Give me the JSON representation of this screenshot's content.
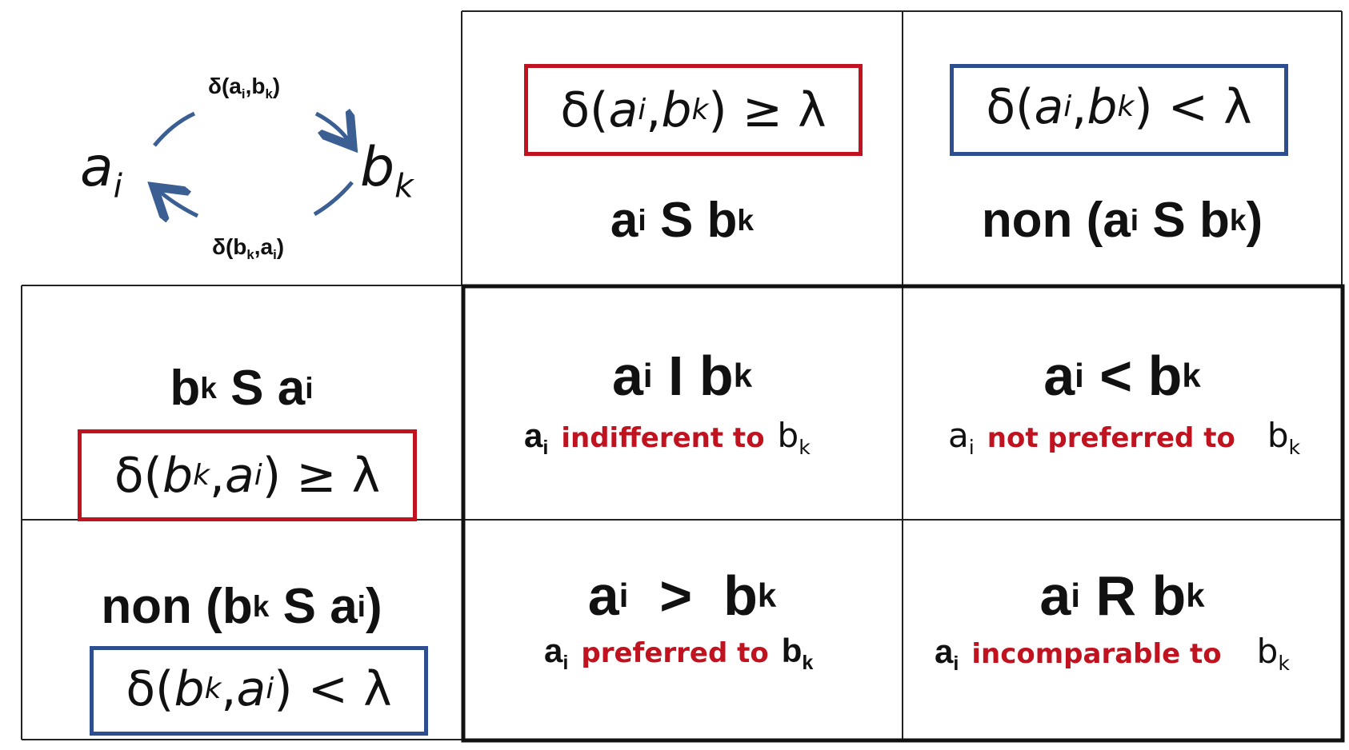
{
  "graph": {
    "node_a": "a",
    "node_a_sub": "i",
    "node_b": "b",
    "node_b_sub": "k",
    "top_arrow": {
      "pre": "δ(a",
      "s1": "i",
      "mid": ",b",
      "s2": "k",
      "post": ")"
    },
    "bottom_arrow": {
      "pre": "δ(b",
      "s1": "k",
      "mid": ",a",
      "s2": "i",
      "post": ")"
    }
  },
  "col_headers": [
    {
      "cond": {
        "pre": "δ(",
        "v1": "a",
        "s1": "i",
        "sep": ", ",
        "v2": "b",
        "s2": "k",
        "post": ")",
        "op": "≥ λ"
      },
      "rel": {
        "t1": "a",
        "s1": "i",
        "op": " S ",
        "t2": "b",
        "s2": "k",
        "prefix": "",
        "suffix": ""
      }
    },
    {
      "cond": {
        "pre": "δ(",
        "v1": "a",
        "s1": "i",
        "sep": ", ",
        "v2": "b",
        "s2": "k",
        "post": ")",
        "op": "< λ"
      },
      "rel": {
        "prefix": "non (",
        "t1": "a",
        "s1": "i",
        "op": " S ",
        "t2": "b",
        "s2": "k",
        "suffix": ")"
      }
    }
  ],
  "row_headers": [
    {
      "rel": {
        "prefix": "",
        "t1": "b",
        "s1": "k",
        "op": " S ",
        "t2": "a",
        "s2": "i",
        "suffix": ""
      },
      "cond": {
        "pre": "δ(",
        "v1": "b",
        "s1": "k",
        "sep": ", ",
        "v2": "a",
        "s2": "i",
        "post": ")",
        "op": "≥ λ"
      }
    },
    {
      "rel": {
        "prefix": "non (",
        "t1": "b",
        "s1": "k",
        "op": " S ",
        "t2": "a",
        "s2": "i",
        "suffix": ")"
      },
      "cond": {
        "pre": "δ(",
        "v1": "b",
        "s1": "k",
        "sep": ", ",
        "v2": "a",
        "s2": "i",
        "post": ")",
        "op": "< λ"
      }
    }
  ],
  "cells": [
    {
      "rel": {
        "t1": "a",
        "s1": "i",
        "op": " I ",
        "t2": "b",
        "s2": "k"
      },
      "desc": {
        "a": "a",
        "as": "i",
        "text": "indifferent to",
        "b": "b",
        "bs": "k"
      }
    },
    {
      "rel": {
        "t1": "a",
        "s1": "i",
        "op": " < ",
        "t2": "b",
        "s2": "k"
      },
      "desc": {
        "a": "a",
        "as": "i",
        "text": "not preferred to",
        "b": "b",
        "bs": "k"
      }
    },
    {
      "rel": {
        "t1": "a",
        "s1": "i",
        "op": "  >  ",
        "t2": "b",
        "s2": "k"
      },
      "desc": {
        "a": "a",
        "as": "i",
        "text": "preferred to",
        "b": "b",
        "bs": "k"
      }
    },
    {
      "rel": {
        "t1": "a",
        "s1": "i",
        "op": " R ",
        "t2": "b",
        "s2": "k"
      },
      "desc": {
        "a": "a",
        "as": "i",
        "text": "incomparable to",
        "b": "b",
        "bs": "k"
      }
    }
  ],
  "colors": {
    "red": "#c1121f",
    "blue": "#2d4f8f",
    "arrow": "#3b5f93"
  }
}
